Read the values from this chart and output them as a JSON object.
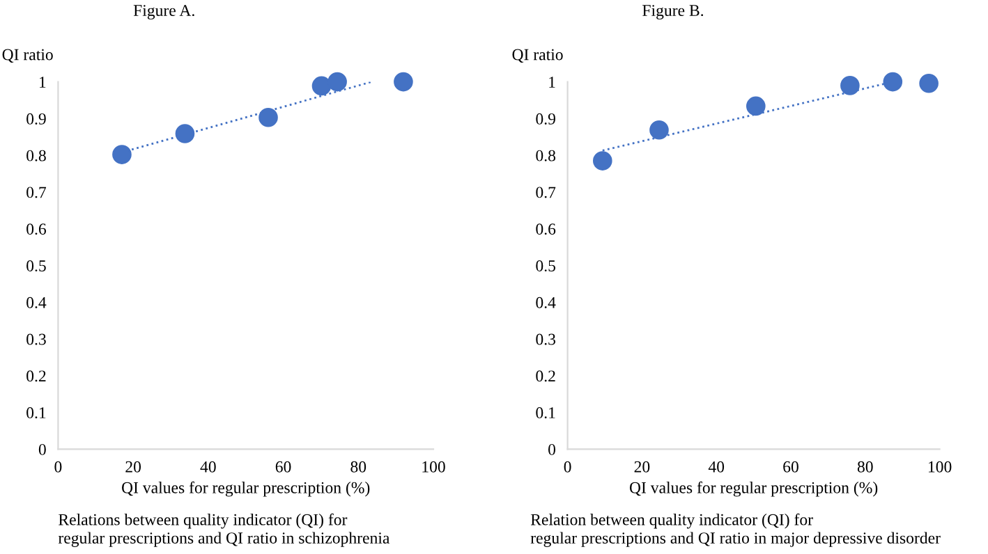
{
  "chart_data": [
    {
      "type": "scatter",
      "title": "Figure A.",
      "ylabel": "QI ratio",
      "xlabel": "QI values for regular prescription (%)",
      "annotations": [
        "Relations between quality indicator (QI) for\nregular prescriptions and QI ratio in schizophrenia"
      ],
      "x": [
        17,
        33.8,
        56,
        70.2,
        74.4,
        92
      ],
      "series": [
        {
          "color": "#4472c4",
          "values": [
            0.802,
            0.859,
            0.903,
            0.989,
            1.0,
            1.0
          ]
        },
        {
          "type": "line",
          "color": "#4472c4",
          "line_style": "dotted",
          "marker": "none",
          "x": [
            17,
            83.5
          ],
          "values": [
            0.808,
            1.0
          ]
        }
      ],
      "marker": "circle",
      "xlim": [
        0,
        100
      ],
      "xticks": [
        0,
        20,
        40,
        60,
        80,
        100
      ],
      "ylim": [
        0,
        1
      ],
      "yticks": [
        0,
        0.1,
        0.2,
        0.3,
        0.4,
        0.5,
        0.6,
        0.7,
        0.8,
        0.9,
        1
      ],
      "grid": false
    },
    {
      "type": "scatter",
      "title": "Figure B.",
      "ylabel": "QI ratio",
      "xlabel": "QI values for regular prescription (%)",
      "annotations": [
        "Relation between quality indicator (QI) for\nregular prescriptions and QI ratio in major depressive disorder"
      ],
      "x": [
        9.4,
        24.6,
        50.6,
        75.9,
        87.4,
        97.1
      ],
      "series": [
        {
          "color": "#4472c4",
          "values": [
            0.785,
            0.869,
            0.934,
            0.99,
            1.0,
            0.996
          ]
        },
        {
          "type": "line",
          "color": "#4472c4",
          "line_style": "dotted",
          "marker": "none",
          "x": [
            9.4,
            87.4
          ],
          "values": [
            0.813,
            1.0
          ]
        }
      ],
      "marker": "circle",
      "xlim": [
        0,
        100
      ],
      "xticks": [
        0,
        20,
        40,
        60,
        80,
        100
      ],
      "ylim": [
        0,
        1
      ],
      "yticks": [
        0,
        0.1,
        0.2,
        0.3,
        0.4,
        0.5,
        0.6,
        0.7,
        0.8,
        0.9,
        1
      ],
      "grid": false
    }
  ]
}
